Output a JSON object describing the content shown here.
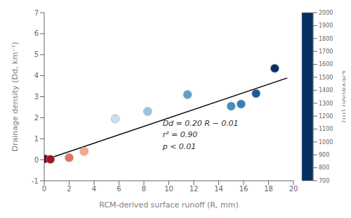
{
  "chart_data": {
    "type": "scatter",
    "xlabel": "RCM-derived surface runoff (R, mm)",
    "ylabel": "Drainage density (Dd, km⁻¹)",
    "x": [
      0.05,
      0.5,
      2.0,
      3.2,
      5.7,
      8.3,
      11.5,
      15.0,
      15.8,
      17.0,
      18.5
    ],
    "values": [
      0.04,
      0.02,
      0.1,
      0.4,
      1.95,
      2.3,
      3.1,
      2.55,
      2.65,
      3.15,
      4.35
    ],
    "elevation": [
      2000,
      1900,
      1700,
      1600,
      1200,
      1100,
      1000,
      950,
      900,
      800,
      700
    ],
    "xlim": [
      0,
      20
    ],
    "ylim": [
      -1,
      7
    ],
    "xticks": [
      0,
      2,
      4,
      6,
      8,
      10,
      12,
      14,
      16,
      18,
      20
    ],
    "yticks": [
      -1,
      0,
      1,
      2,
      3,
      4,
      5,
      6,
      7
    ],
    "grid": false,
    "line": {
      "x": [
        0,
        19.5
      ],
      "values": [
        -0.01,
        3.89
      ],
      "color": "#000000",
      "line_style": "solid"
    },
    "annotations": [
      {
        "text": "Dd = 0.20 R − 0.01",
        "x": 9.5,
        "y": 1.55
      },
      {
        "text": "r² = 0.90",
        "x": 9.5,
        "y": 1.0
      },
      {
        "text": "p < 0.01",
        "x": 9.5,
        "y": 0.45
      }
    ],
    "colorbar": {
      "label": "Elevation (m)",
      "range": [
        700,
        2000
      ],
      "ticks": [
        700,
        800,
        900,
        1000,
        1100,
        1200,
        1300,
        1400,
        1500,
        1600,
        1700,
        1800,
        1900,
        2000
      ]
    }
  }
}
